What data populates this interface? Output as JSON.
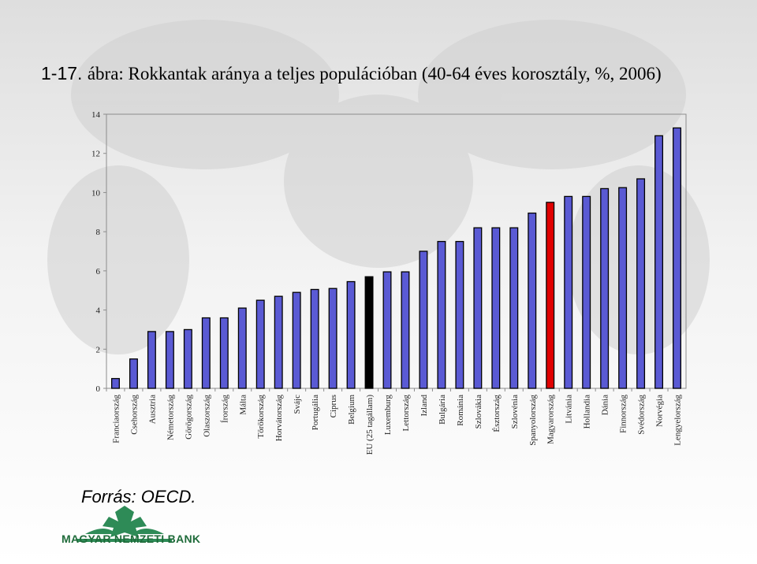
{
  "title": {
    "number": "1-17.",
    "text": "ábra: Rokkantak aránya a teljes populációban (40-64 éves korosztály, %, 2006)"
  },
  "source": "Forrás: OECD.",
  "logo": {
    "text": "MAGYAR NEMZETI BANK",
    "icon": "eagle-crest-icon",
    "color": "#1f6b3a"
  },
  "colors": {
    "default_bar": "#5a5ad4",
    "highlight_eu": "#000000",
    "highlight_hu": "#e00000"
  },
  "chart_data": {
    "type": "bar",
    "categories": [
      "Franciaország",
      "Csehország",
      "Ausztria",
      "Németország",
      "Görögország",
      "Olaszország",
      "Írország",
      "Málta",
      "Törökország",
      "Horvátország",
      "Svájc",
      "Portugália",
      "Ciprus",
      "Belgium",
      "EU (25 tagállam)",
      "Luxemburg",
      "Lettország",
      "Izland",
      "Bulgária",
      "Románia",
      "Szlovákia",
      "Észtország",
      "Szlovénia",
      "Spanyolország",
      "Magyarország",
      "Litvánia",
      "Hollandia",
      "Dánia",
      "Finnország",
      "Svédország",
      "Norvégia",
      "Lengyelország"
    ],
    "values": [
      0.5,
      1.5,
      2.9,
      2.9,
      3.0,
      3.6,
      3.6,
      4.1,
      4.5,
      4.7,
      4.9,
      5.05,
      5.1,
      5.45,
      5.7,
      5.95,
      5.95,
      7.0,
      7.5,
      7.5,
      8.2,
      8.2,
      8.2,
      8.95,
      9.5,
      9.8,
      9.8,
      10.2,
      10.25,
      10.7,
      12.9,
      13.3
    ],
    "highlight": {
      "EU (25 tagállam)": "#000000",
      "Magyarország": "#e00000"
    },
    "ylim": [
      0,
      14
    ],
    "yticks": [
      0,
      2,
      4,
      6,
      8,
      10,
      12,
      14
    ],
    "xlabel": "",
    "ylabel": "",
    "grid": false
  }
}
